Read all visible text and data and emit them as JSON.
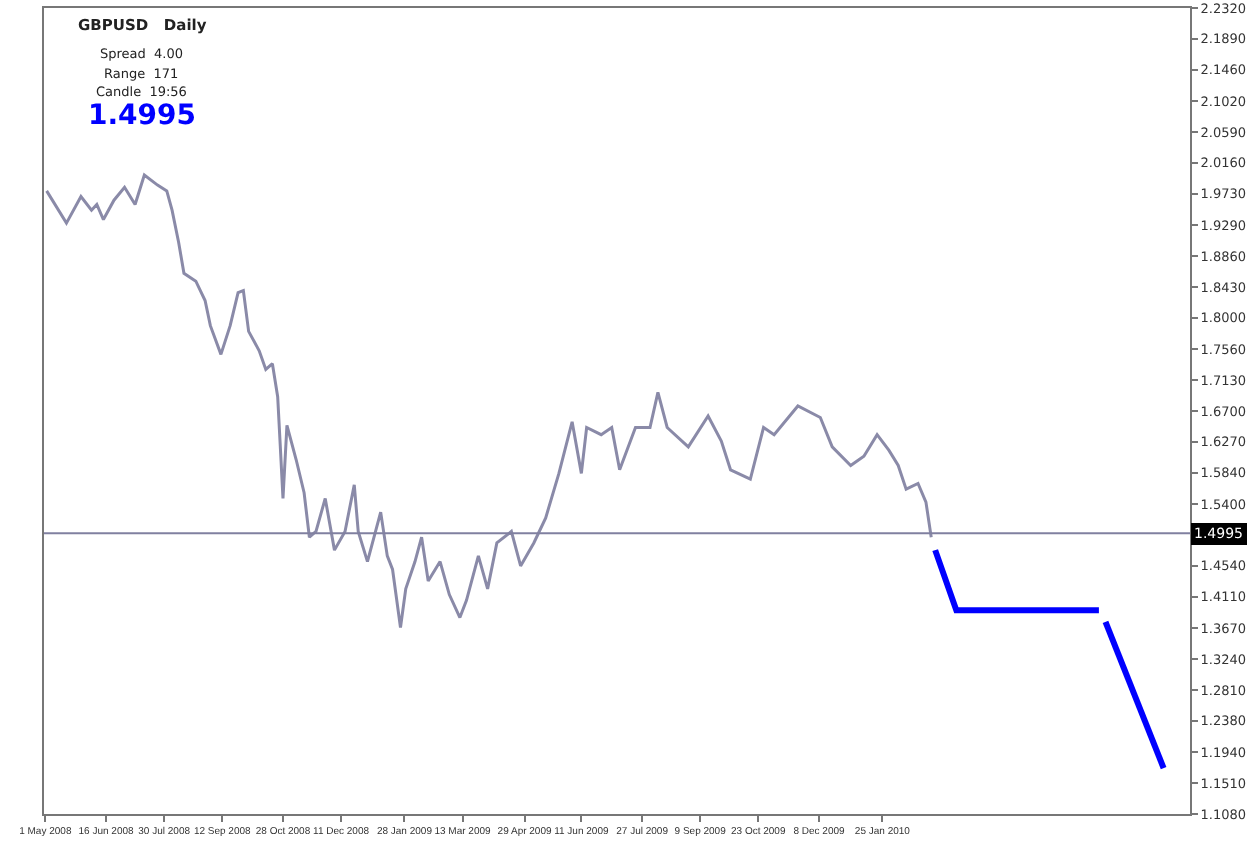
{
  "chart_data": {
    "type": "line",
    "annotations": [
      "GBPUSD   Daily",
      "Spread  4.00",
      "Range  171",
      "Candle  19:56",
      "1.4995"
    ],
    "series": [
      {
        "color": "#8a8aa8",
        "x": [
          "2008-05-02",
          "2008-05-17",
          "2008-05-28",
          "2008-06-05",
          "2008-06-09",
          "2008-06-14",
          "2008-06-22",
          "2008-06-30",
          "2008-07-08",
          "2008-07-15",
          "2008-07-25",
          "2008-08-01",
          "2008-08-05",
          "2008-08-10",
          "2008-08-14",
          "2008-08-23",
          "2008-08-30",
          "2008-09-03",
          "2008-09-11",
          "2008-09-18",
          "2008-09-24",
          "2008-09-28",
          "2008-10-02",
          "2008-10-10",
          "2008-10-15",
          "2008-10-20",
          "2008-10-24",
          "2008-10-26",
          "2008-10-28",
          "2008-10-31",
          "2008-11-07",
          "2008-11-13",
          "2008-11-17",
          "2008-11-22",
          "2008-11-29",
          "2008-12-06",
          "2008-12-14",
          "2008-12-21",
          "2008-12-24",
          "2008-12-31",
          "2009-01-10",
          "2009-01-15",
          "2009-01-19",
          "2009-01-25",
          "2009-01-29",
          "2009-02-05",
          "2009-02-10",
          "2009-02-15",
          "2009-02-24",
          "2009-03-03",
          "2009-03-11",
          "2009-03-16",
          "2009-03-25",
          "2009-04-01",
          "2009-04-08",
          "2009-04-19",
          "2009-04-26",
          "2009-05-06",
          "2009-05-15",
          "2009-05-25",
          "2009-06-04",
          "2009-06-11",
          "2009-06-15",
          "2009-06-26",
          "2009-07-04",
          "2009-07-10",
          "2009-07-22",
          "2009-08-02",
          "2009-08-08",
          "2009-08-15",
          "2009-08-31",
          "2009-09-15",
          "2009-09-25",
          "2009-10-02",
          "2009-10-17",
          "2009-10-27",
          "2009-11-04",
          "2009-11-22",
          "2009-12-09",
          "2009-12-18",
          "2010-01-01",
          "2010-01-11",
          "2010-01-21",
          "2010-01-30",
          "2010-02-06",
          "2010-02-12",
          "2010-02-21",
          "2010-02-27",
          "2010-03-03"
        ],
        "values": [
          1.977,
          1.932,
          1.969,
          1.95,
          1.958,
          1.937,
          1.964,
          1.982,
          1.958,
          1.999,
          1.985,
          1.977,
          1.95,
          1.905,
          1.862,
          1.851,
          1.824,
          1.789,
          1.749,
          1.789,
          1.835,
          1.838,
          1.781,
          1.754,
          1.728,
          1.736,
          1.69,
          1.62,
          1.548,
          1.65,
          1.602,
          1.556,
          1.494,
          1.502,
          1.548,
          1.476,
          1.502,
          1.567,
          1.502,
          1.46,
          1.529,
          1.468,
          1.449,
          1.368,
          1.422,
          1.46,
          1.494,
          1.433,
          1.46,
          1.414,
          1.382,
          1.406,
          1.468,
          1.422,
          1.486,
          1.502,
          1.454,
          1.486,
          1.521,
          1.583,
          1.655,
          1.583,
          1.647,
          1.637,
          1.647,
          1.588,
          1.647,
          1.647,
          1.696,
          1.647,
          1.62,
          1.663,
          1.628,
          1.588,
          1.575,
          1.647,
          1.637,
          1.677,
          1.661,
          1.62,
          1.594,
          1.607,
          1.637,
          1.615,
          1.594,
          1.561,
          1.569,
          1.543,
          1.494
        ]
      },
      {
        "color": "#0000ff",
        "x": [
          "2010-03-06",
          "2010-03-22",
          "2010-07-08"
        ],
        "values": [
          1.476,
          1.392,
          1.392
        ]
      },
      {
        "color": "#0000ff",
        "x": [
          "2010-07-13",
          "2010-08-26"
        ],
        "values": [
          1.376,
          1.172
        ]
      }
    ],
    "xlim": [
      "2008-04-30",
      "2010-09-15"
    ],
    "xticks": [
      {
        "value": "2008-05-01",
        "label": "1 May 2008"
      },
      {
        "value": "2008-06-16",
        "label": "16 Jun 2008"
      },
      {
        "value": "2008-07-30",
        "label": "30 Jul 2008"
      },
      {
        "value": "2008-09-12",
        "label": "12 Sep 2008"
      },
      {
        "value": "2008-10-28",
        "label": "28 Oct 2008"
      },
      {
        "value": "2008-12-11",
        "label": "11 Dec 2008"
      },
      {
        "value": "2009-01-28",
        "label": "28 Jan 2009"
      },
      {
        "value": "2009-03-13",
        "label": "13 Mar 2009"
      },
      {
        "value": "2009-04-29",
        "label": "29 Apr 2009"
      },
      {
        "value": "2009-06-11",
        "label": "11 Jun 2009"
      },
      {
        "value": "2009-07-27",
        "label": "27 Jul 2009"
      },
      {
        "value": "2009-09-09",
        "label": "9 Sep 2009"
      },
      {
        "value": "2009-10-23",
        "label": "23 Oct 2009"
      },
      {
        "value": "2009-12-08",
        "label": "8 Dec 2009"
      },
      {
        "value": "2010-01-25",
        "label": "25 Jan 2010"
      }
    ],
    "ylim": [
      1.108,
      2.232
    ],
    "yticks": [
      {
        "value": 2.232,
        "label": "2.2320"
      },
      {
        "value": 2.189,
        "label": "2.1890"
      },
      {
        "value": 2.146,
        "label": "2.1460"
      },
      {
        "value": 2.102,
        "label": "2.1020"
      },
      {
        "value": 2.059,
        "label": "2.0590"
      },
      {
        "value": 2.016,
        "label": "2.0160"
      },
      {
        "value": 1.973,
        "label": "1.9730"
      },
      {
        "value": 1.929,
        "label": "1.9290"
      },
      {
        "value": 1.886,
        "label": "1.8860"
      },
      {
        "value": 1.843,
        "label": "1.8430"
      },
      {
        "value": 1.8,
        "label": "1.8000"
      },
      {
        "value": 1.756,
        "label": "1.7560"
      },
      {
        "value": 1.713,
        "label": "1.7130"
      },
      {
        "value": 1.67,
        "label": "1.6700"
      },
      {
        "value": 1.627,
        "label": "1.6270"
      },
      {
        "value": 1.584,
        "label": "1.5840"
      },
      {
        "value": 1.54,
        "label": "1.5400"
      },
      {
        "value": 1.454,
        "label": "1.4540"
      },
      {
        "value": 1.411,
        "label": "1.4110"
      },
      {
        "value": 1.367,
        "label": "1.3670"
      },
      {
        "value": 1.324,
        "label": "1.3240"
      },
      {
        "value": 1.281,
        "label": "1.2810"
      },
      {
        "value": 1.238,
        "label": "1.2380"
      },
      {
        "value": 1.194,
        "label": "1.1940"
      },
      {
        "value": 1.151,
        "label": "1.1510"
      },
      {
        "value": 1.108,
        "label": "1.1080"
      }
    ],
    "ref_lines": [
      {
        "axis": "y",
        "value": 1.4995,
        "label": "1.4995",
        "color": "#8080a0"
      }
    ],
    "grid": false
  }
}
